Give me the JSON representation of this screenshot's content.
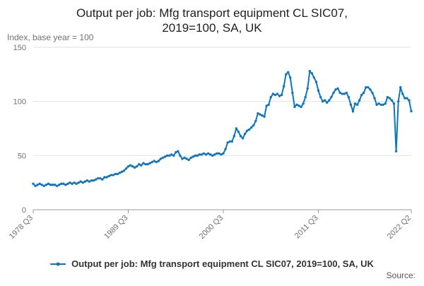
{
  "chart_data": {
    "type": "line",
    "title": [
      "Output per job: Mfg transport equipment CL SIC07,",
      "2019=100, SA, UK"
    ],
    "y_label": "Index, base year = 100",
    "source": "Source:",
    "ylim": [
      0,
      150
    ],
    "yticks": [
      0,
      50,
      100,
      150
    ],
    "grid": true,
    "legend": "bottom",
    "categories": [
      "1978 Q3",
      null,
      null,
      null,
      null,
      null,
      null,
      null,
      null,
      null,
      null,
      null,
      null,
      null,
      null,
      null,
      null,
      null,
      null,
      null,
      null,
      null,
      null,
      null,
      null,
      null,
      null,
      null,
      null,
      null,
      null,
      null,
      null,
      null,
      null,
      null,
      null,
      null,
      null,
      null,
      null,
      null,
      null,
      null,
      "1989 Q3",
      null,
      null,
      null,
      null,
      null,
      null,
      null,
      null,
      null,
      null,
      null,
      null,
      null,
      null,
      null,
      null,
      null,
      null,
      null,
      null,
      null,
      null,
      null,
      null,
      null,
      null,
      null,
      null,
      null,
      null,
      null,
      null,
      null,
      null,
      null,
      null,
      null,
      null,
      null,
      null,
      null,
      null,
      null,
      "2000 Q3",
      null,
      null,
      null,
      null,
      null,
      null,
      null,
      null,
      null,
      null,
      null,
      null,
      null,
      null,
      null,
      null,
      null,
      null,
      null,
      null,
      null,
      null,
      null,
      null,
      null,
      null,
      null,
      null,
      null,
      null,
      null,
      null,
      null,
      null,
      null,
      null,
      null,
      null,
      null,
      null,
      null,
      null,
      null,
      "2011 Q3",
      null,
      null,
      null,
      null,
      null,
      null,
      null,
      null,
      null,
      null,
      null,
      null,
      null,
      null,
      null,
      null,
      null,
      null,
      null,
      null,
      null,
      null,
      null,
      null,
      null,
      null,
      null,
      null,
      null,
      null,
      null,
      null,
      null,
      null,
      null,
      null,
      null,
      null,
      null,
      null,
      null,
      null,
      "2022 Q2"
    ],
    "series": [
      {
        "name": "Output per job: Mfg transport equipment CL SIC07, 2019=100, SA, UK",
        "color": "#0f75bc",
        "values": [
          24,
          22,
          23,
          24,
          23,
          22,
          23,
          24,
          23,
          23,
          23,
          22,
          23,
          24,
          24,
          23,
          24,
          25,
          24,
          25,
          24,
          25,
          26,
          25,
          26,
          27,
          26,
          27,
          27,
          28,
          29,
          29,
          28,
          30,
          30,
          31,
          32,
          32,
          33,
          33,
          34,
          35,
          36,
          38,
          40,
          41,
          40,
          39,
          40,
          42,
          41,
          43,
          42,
          42,
          43,
          44,
          45,
          44,
          45,
          47,
          48,
          49,
          50,
          50,
          51,
          50,
          53,
          54,
          50,
          47,
          48,
          47,
          46,
          48,
          49,
          50,
          50,
          51,
          51,
          52,
          51,
          52,
          51,
          50,
          51,
          52,
          52,
          51,
          52,
          56,
          62,
          63,
          63,
          68,
          75,
          72,
          68,
          66,
          70,
          73,
          74,
          76,
          78,
          82,
          89,
          88,
          87,
          86,
          96,
          97,
          104,
          107,
          106,
          107,
          105,
          106,
          114,
          125,
          127,
          122,
          108,
          95,
          97,
          96,
          95,
          98,
          104,
          112,
          128,
          126,
          122,
          118,
          110,
          104,
          100,
          101,
          99,
          101,
          104,
          108,
          111,
          112,
          108,
          107,
          107,
          108,
          104,
          97,
          91,
          98,
          97,
          101,
          106,
          108,
          113,
          113,
          111,
          108,
          103,
          97,
          98,
          97,
          97,
          98,
          104,
          103,
          101,
          98,
          54,
          100,
          113,
          107,
          103,
          103,
          101,
          91
        ]
      }
    ]
  }
}
